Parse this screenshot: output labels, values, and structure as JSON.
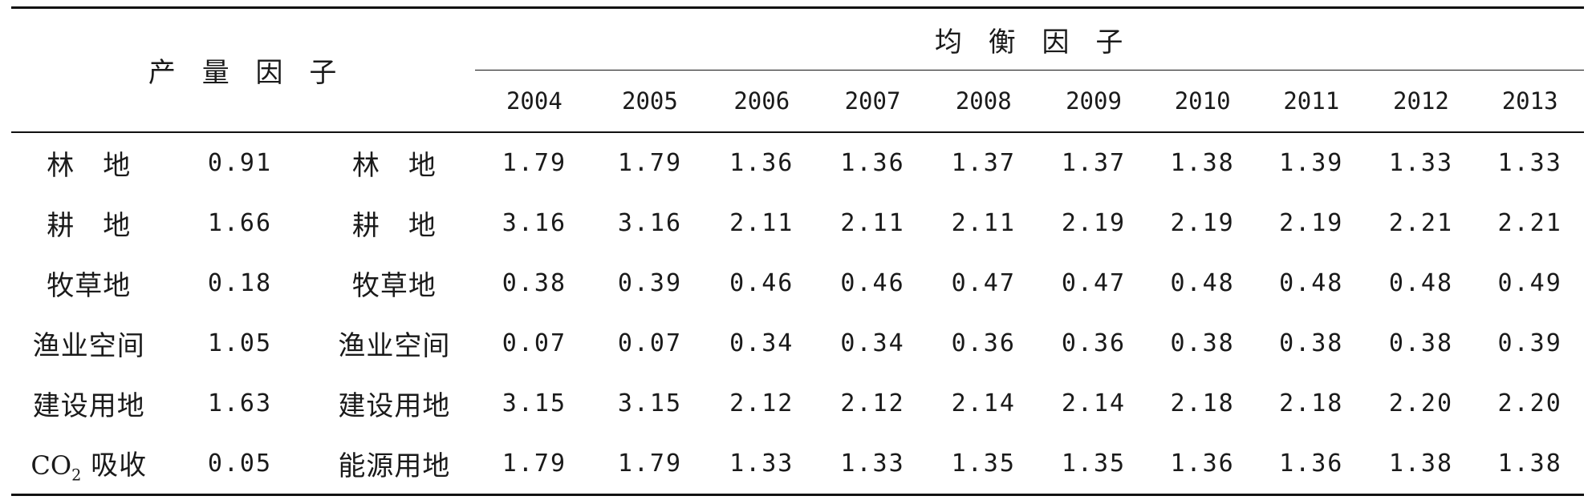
{
  "header": {
    "yield_factor": "产 量 因 子",
    "balance_factor": "均 衡 因 子",
    "years": [
      "2004",
      "2005",
      "2006",
      "2007",
      "2008",
      "2009",
      "2010",
      "2011",
      "2012",
      "2013"
    ]
  },
  "rows": [
    {
      "yield_label": "林　地",
      "yield_value": "0.91",
      "balance_label": "林　地",
      "values": [
        "1.79",
        "1.79",
        "1.36",
        "1.36",
        "1.37",
        "1.37",
        "1.38",
        "1.39",
        "1.33",
        "1.33"
      ]
    },
    {
      "yield_label": "耕　地",
      "yield_value": "1.66",
      "balance_label": "耕　地",
      "values": [
        "3.16",
        "3.16",
        "2.11",
        "2.11",
        "2.11",
        "2.19",
        "2.19",
        "2.19",
        "2.21",
        "2.21"
      ]
    },
    {
      "yield_label": "牧草地",
      "yield_value": "0.18",
      "balance_label": "牧草地",
      "values": [
        "0.38",
        "0.39",
        "0.46",
        "0.46",
        "0.47",
        "0.47",
        "0.48",
        "0.48",
        "0.48",
        "0.49"
      ]
    },
    {
      "yield_label": "渔业空间",
      "yield_value": "1.05",
      "balance_label": "渔业空间",
      "values": [
        "0.07",
        "0.07",
        "0.34",
        "0.34",
        "0.36",
        "0.36",
        "0.38",
        "0.38",
        "0.38",
        "0.39"
      ]
    },
    {
      "yield_label": "建设用地",
      "yield_value": "1.63",
      "balance_label": "建设用地",
      "values": [
        "3.15",
        "3.15",
        "2.12",
        "2.12",
        "2.14",
        "2.14",
        "2.18",
        "2.18",
        "2.20",
        "2.20"
      ]
    },
    {
      "yield_label_main": "CO",
      "yield_label_sub": "2",
      "yield_label_tail": " 吸收",
      "yield_value": "0.05",
      "balance_label": "能源用地",
      "values": [
        "1.79",
        "1.79",
        "1.33",
        "1.33",
        "1.35",
        "1.35",
        "1.36",
        "1.36",
        "1.38",
        "1.38"
      ]
    }
  ]
}
